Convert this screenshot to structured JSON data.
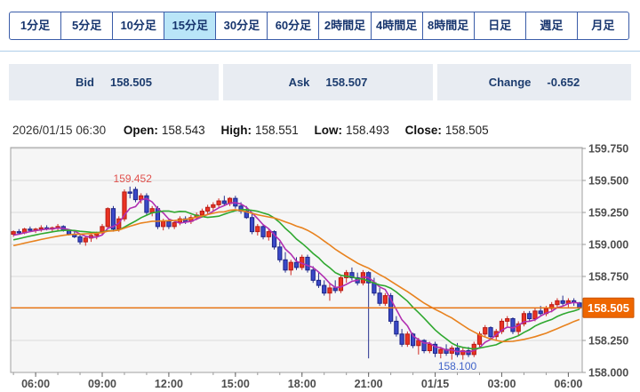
{
  "tabs": {
    "items": [
      {
        "id": "1min",
        "label": "1分足",
        "selected": false
      },
      {
        "id": "5min",
        "label": "5分足",
        "selected": false
      },
      {
        "id": "10min",
        "label": "10分足",
        "selected": false
      },
      {
        "id": "15min",
        "label": "15分足",
        "selected": true
      },
      {
        "id": "30min",
        "label": "30分足",
        "selected": false
      },
      {
        "id": "60min",
        "label": "60分足",
        "selected": false
      },
      {
        "id": "2h",
        "label": "2時間足",
        "selected": false
      },
      {
        "id": "4h",
        "label": "4時間足",
        "selected": false
      },
      {
        "id": "8h",
        "label": "8時間足",
        "selected": false
      },
      {
        "id": "1d",
        "label": "日足",
        "selected": false
      },
      {
        "id": "1w",
        "label": "週足",
        "selected": false
      },
      {
        "id": "1mo",
        "label": "月足",
        "selected": false
      }
    ]
  },
  "quote": {
    "bid_label": "Bid",
    "bid": "158.505",
    "ask_label": "Ask",
    "ask": "158.507",
    "change_label": "Change",
    "change": "-0.652"
  },
  "ohlc": {
    "datetime": "2026/01/15 06:30",
    "open_label": "Open:",
    "open": "158.543",
    "high_label": "High:",
    "high": "158.551",
    "low_label": "Low:",
    "low": "158.493",
    "close_label": "Close:",
    "close": "158.505"
  },
  "chart_data": {
    "type": "candlestick",
    "timeframe": "15min",
    "start_time": "05:00",
    "interval_minutes": 15,
    "y_axis": {
      "min": 158.0,
      "max": 159.757,
      "ticks": [
        159.75,
        159.5,
        159.25,
        159.0,
        158.75,
        158.5,
        158.25,
        158.0
      ]
    },
    "x_labels": [
      {
        "label": "06:00",
        "index": 4
      },
      {
        "label": "09:00",
        "index": 16
      },
      {
        "label": "12:00",
        "index": 28
      },
      {
        "label": "15:00",
        "index": 40
      },
      {
        "label": "18:00",
        "index": 52
      },
      {
        "label": "21:00",
        "index": 64
      },
      {
        "label": "01/15",
        "index": 76
      },
      {
        "label": "03:00",
        "index": 88
      },
      {
        "label": "06:00",
        "index": 100
      }
    ],
    "candles": [
      [
        159.08,
        159.11,
        159.06,
        159.1
      ],
      [
        159.1,
        159.12,
        159.08,
        159.09
      ],
      [
        159.09,
        159.13,
        159.08,
        159.12
      ],
      [
        159.12,
        159.14,
        159.1,
        159.11
      ],
      [
        159.11,
        159.13,
        159.09,
        159.12
      ],
      [
        159.12,
        159.15,
        159.1,
        159.13
      ],
      [
        159.13,
        159.15,
        159.11,
        159.12
      ],
      [
        159.12,
        159.14,
        159.1,
        159.13
      ],
      [
        159.13,
        159.16,
        159.11,
        159.14
      ],
      [
        159.14,
        159.15,
        159.1,
        159.11
      ],
      [
        159.11,
        159.12,
        159.07,
        159.08
      ],
      [
        159.08,
        159.1,
        159.05,
        159.06
      ],
      [
        159.06,
        159.08,
        159.0,
        159.02
      ],
      [
        159.02,
        159.06,
        158.99,
        159.05
      ],
      [
        159.05,
        159.08,
        159.02,
        159.07
      ],
      [
        159.07,
        159.1,
        159.04,
        159.09
      ],
      [
        159.09,
        159.16,
        159.07,
        159.14
      ],
      [
        159.14,
        159.29,
        159.13,
        159.28
      ],
      [
        159.28,
        159.3,
        159.1,
        159.12
      ],
      [
        159.12,
        159.22,
        159.1,
        159.2
      ],
      [
        159.2,
        159.43,
        159.18,
        159.41
      ],
      [
        159.41,
        159.452,
        159.36,
        159.4
      ],
      [
        159.43,
        159.45,
        159.33,
        159.35
      ],
      [
        159.35,
        159.4,
        159.32,
        159.38
      ],
      [
        159.38,
        159.4,
        159.23,
        159.25
      ],
      [
        159.25,
        159.3,
        159.22,
        159.28
      ],
      [
        159.28,
        159.3,
        159.12,
        159.14
      ],
      [
        159.14,
        159.2,
        159.11,
        159.18
      ],
      [
        159.18,
        159.2,
        159.12,
        159.14
      ],
      [
        159.14,
        159.19,
        159.12,
        159.17
      ],
      [
        159.17,
        159.22,
        159.15,
        159.2
      ],
      [
        159.2,
        159.22,
        159.16,
        159.18
      ],
      [
        159.18,
        159.23,
        159.16,
        159.21
      ],
      [
        159.21,
        159.25,
        159.19,
        159.23
      ],
      [
        159.23,
        159.28,
        159.21,
        159.26
      ],
      [
        159.26,
        159.31,
        159.24,
        159.29
      ],
      [
        159.29,
        159.33,
        159.26,
        159.31
      ],
      [
        159.31,
        159.36,
        159.29,
        159.34
      ],
      [
        159.34,
        159.38,
        159.3,
        159.32
      ],
      [
        159.32,
        159.37,
        159.3,
        159.36
      ],
      [
        159.36,
        159.38,
        159.28,
        159.3
      ],
      [
        159.3,
        159.33,
        159.24,
        159.26
      ],
      [
        159.26,
        159.3,
        159.2,
        159.21
      ],
      [
        159.21,
        159.24,
        159.08,
        159.1
      ],
      [
        159.1,
        159.16,
        159.07,
        159.14
      ],
      [
        159.14,
        159.16,
        159.04,
        159.06
      ],
      [
        159.06,
        159.12,
        159.03,
        159.1
      ],
      [
        159.1,
        159.11,
        158.96,
        158.98
      ],
      [
        158.98,
        159.02,
        158.86,
        158.88
      ],
      [
        158.88,
        158.94,
        158.78,
        158.8
      ],
      [
        158.8,
        158.88,
        158.76,
        158.86
      ],
      [
        158.86,
        158.9,
        158.8,
        158.82
      ],
      [
        158.82,
        158.92,
        158.8,
        158.9
      ],
      [
        158.9,
        158.92,
        158.78,
        158.8
      ],
      [
        158.8,
        158.83,
        158.7,
        158.72
      ],
      [
        158.72,
        158.78,
        158.66,
        158.68
      ],
      [
        158.68,
        158.72,
        158.6,
        158.62
      ],
      [
        158.62,
        158.7,
        158.56,
        158.66
      ],
      [
        158.66,
        158.72,
        158.62,
        158.64
      ],
      [
        158.64,
        158.76,
        158.62,
        158.74
      ],
      [
        158.74,
        158.8,
        158.7,
        158.78
      ],
      [
        158.78,
        158.82,
        158.72,
        158.74
      ],
      [
        158.74,
        158.78,
        158.68,
        158.7
      ],
      [
        158.7,
        158.8,
        158.68,
        158.78
      ],
      [
        158.78,
        158.79,
        158.11,
        158.7
      ],
      [
        158.7,
        158.74,
        158.6,
        158.62
      ],
      [
        158.62,
        158.66,
        158.52,
        158.54
      ],
      [
        158.54,
        158.62,
        158.52,
        158.6
      ],
      [
        158.6,
        158.62,
        158.38,
        158.4
      ],
      [
        158.4,
        158.44,
        158.28,
        158.3
      ],
      [
        158.3,
        158.34,
        158.2,
        158.22
      ],
      [
        158.22,
        158.32,
        158.2,
        158.3
      ],
      [
        158.3,
        158.31,
        158.19,
        158.21
      ],
      [
        158.21,
        158.27,
        158.14,
        158.25
      ],
      [
        158.25,
        158.26,
        158.15,
        158.17
      ],
      [
        158.17,
        158.24,
        158.15,
        158.22
      ],
      [
        158.22,
        158.24,
        158.12,
        158.15
      ],
      [
        158.15,
        158.2,
        158.11,
        158.18
      ],
      [
        158.18,
        158.22,
        158.13,
        158.15
      ],
      [
        158.15,
        158.21,
        158.1,
        158.19
      ],
      [
        158.19,
        158.23,
        158.12,
        158.14
      ],
      [
        158.14,
        158.19,
        158.1,
        158.17
      ],
      [
        158.17,
        158.2,
        158.12,
        158.14
      ],
      [
        158.14,
        158.24,
        158.12,
        158.22
      ],
      [
        158.22,
        158.32,
        158.2,
        158.3
      ],
      [
        158.3,
        158.37,
        158.28,
        158.35
      ],
      [
        158.35,
        158.36,
        158.26,
        158.28
      ],
      [
        158.28,
        158.34,
        158.25,
        158.32
      ],
      [
        158.32,
        158.42,
        158.3,
        158.4
      ],
      [
        158.4,
        158.44,
        158.36,
        158.42
      ],
      [
        158.42,
        158.43,
        158.3,
        158.32
      ],
      [
        158.32,
        158.4,
        158.29,
        158.38
      ],
      [
        158.38,
        158.48,
        158.36,
        158.46
      ],
      [
        158.46,
        158.48,
        158.4,
        158.42
      ],
      [
        158.42,
        158.5,
        158.4,
        158.48
      ],
      [
        158.48,
        158.52,
        158.44,
        158.46
      ],
      [
        158.46,
        158.52,
        158.44,
        158.5
      ],
      [
        158.5,
        158.55,
        158.47,
        158.53
      ],
      [
        158.53,
        158.58,
        158.5,
        158.56
      ],
      [
        158.56,
        158.6,
        158.52,
        158.54
      ],
      [
        158.54,
        158.58,
        158.51,
        158.56
      ],
      [
        158.56,
        158.58,
        158.52,
        158.545
      ],
      [
        158.543,
        158.551,
        158.493,
        158.505
      ]
    ],
    "moving_averages": [
      {
        "period": 5,
        "color": "#b12fb1"
      },
      {
        "period": 12,
        "color": "#2fa82f"
      },
      {
        "period": 21,
        "color": "#e8821e"
      }
    ],
    "current_price": {
      "value": 158.505,
      "label": "158.505",
      "line_color": "#e8720e",
      "box_color": "#ee6600"
    },
    "annotations": [
      {
        "id": "session-high",
        "text": "159.452",
        "price": 159.452,
        "candle_index": 21,
        "color": "#e0524e",
        "position": "above"
      },
      {
        "id": "session-low",
        "text": "158.100",
        "price": 158.1,
        "candle_index": 80,
        "color": "#3f63c9",
        "position": "below"
      }
    ],
    "colors": {
      "plot_bg": "#f6f6f6",
      "grid": "#dcdcdc",
      "border": "#a0a0a0",
      "up_fill": "#ea3323",
      "up_stroke": "#b71b15",
      "up_wick": "#cf2a22",
      "down_fill": "#3b49c8",
      "down_stroke": "#1b2488",
      "down_wick": "#27308f"
    }
  }
}
